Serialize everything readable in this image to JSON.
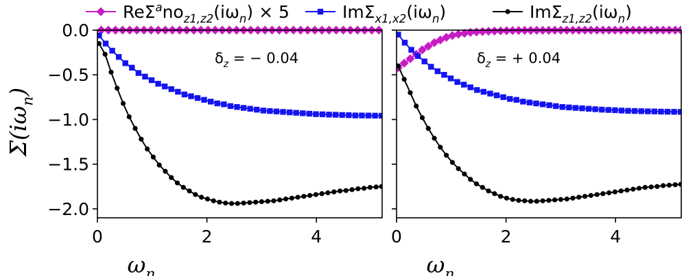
{
  "chart_data": {
    "type": "line",
    "ylabel": "Σ(iω_n)",
    "legend": {
      "placement": "top",
      "entries": [
        {
          "key": "re_ano",
          "label": "ReΣ^ano_{z1,z2}(iω_n) × 5",
          "color": "#c71bc4",
          "marker": "diamond"
        },
        {
          "key": "im_x",
          "label": "ImΣ_{x1,x2}(iω_n)",
          "color": "#1414f0",
          "marker": "square"
        },
        {
          "key": "im_z",
          "label": "ImΣ_{z1,z2}(iω_n)",
          "color": "#000000",
          "marker": "circle"
        }
      ]
    },
    "panels": [
      {
        "name": "left",
        "annotation": "δ_z = − 0.04",
        "xlabel": "ω_n",
        "xlim": [
          0,
          5.2
        ],
        "ylim": [
          -2.1,
          0.0
        ],
        "xticks": [
          0,
          2,
          4
        ],
        "yticks": [
          0.0,
          -0.5,
          -1.0,
          -1.5,
          -2.0
        ],
        "series": [
          {
            "key": "re_ano",
            "x": [
              0.07,
              0.2,
              0.33,
              0.46,
              0.59,
              0.72,
              0.85,
              0.98,
              1.11,
              1.24,
              1.37,
              1.5,
              1.63,
              1.76,
              1.89,
              2.02,
              2.15,
              2.28,
              2.41,
              2.54,
              2.67,
              2.8,
              2.93,
              3.06,
              3.19,
              3.32,
              3.45,
              3.58,
              3.71,
              3.84,
              3.97,
              4.1,
              4.23,
              4.36,
              4.49,
              4.62,
              4.75,
              4.88,
              5.01,
              5.14
            ],
            "y": [
              0,
              0,
              0,
              0,
              0,
              0,
              0,
              0,
              0,
              0,
              0,
              0,
              0,
              0,
              0,
              0,
              0,
              0,
              0,
              0,
              0,
              0,
              0,
              0,
              0,
              0,
              0,
              0,
              0,
              0,
              0,
              0,
              0,
              0,
              0,
              0,
              0,
              0,
              0,
              0
            ]
          },
          {
            "key": "im_x",
            "x": [
              0.03,
              0.15,
              0.27,
              0.39,
              0.51,
              0.63,
              0.75,
              0.87,
              0.99,
              1.11,
              1.23,
              1.35,
              1.47,
              1.59,
              1.71,
              1.83,
              1.95,
              2.07,
              2.19,
              2.31,
              2.43,
              2.55,
              2.67,
              2.79,
              2.91,
              3.03,
              3.15,
              3.27,
              3.39,
              3.51,
              3.63,
              3.75,
              3.87,
              3.99,
              4.11,
              4.23,
              4.35,
              4.47,
              4.59,
              4.71,
              4.83,
              4.95,
              5.07,
              5.19
            ],
            "y": [
              -0.06,
              -0.15,
              -0.23,
              -0.3,
              -0.37,
              -0.42,
              -0.48,
              -0.52,
              -0.56,
              -0.6,
              -0.63,
              -0.66,
              -0.69,
              -0.72,
              -0.74,
              -0.76,
              -0.78,
              -0.8,
              -0.82,
              -0.83,
              -0.85,
              -0.86,
              -0.87,
              -0.88,
              -0.89,
              -0.9,
              -0.905,
              -0.91,
              -0.915,
              -0.92,
              -0.925,
              -0.93,
              -0.935,
              -0.94,
              -0.942,
              -0.945,
              -0.947,
              -0.95,
              -0.952,
              -0.955,
              -0.955,
              -0.956,
              -0.957,
              -0.958
            ]
          },
          {
            "key": "im_z",
            "x": [
              0.03,
              0.14,
              0.25,
              0.36,
              0.47,
              0.58,
              0.69,
              0.8,
              0.91,
              1.02,
              1.13,
              1.24,
              1.35,
              1.46,
              1.57,
              1.68,
              1.79,
              1.9,
              2.01,
              2.12,
              2.23,
              2.34,
              2.45,
              2.56,
              2.67,
              2.78,
              2.89,
              3.0,
              3.11,
              3.22,
              3.33,
              3.44,
              3.55,
              3.66,
              3.77,
              3.88,
              3.99,
              4.1,
              4.21,
              4.32,
              4.43,
              4.54,
              4.65,
              4.76,
              4.87,
              4.98,
              5.09,
              5.19
            ],
            "y": [
              -0.15,
              -0.27,
              -0.47,
              -0.65,
              -0.82,
              -0.97,
              -1.1,
              -1.22,
              -1.33,
              -1.42,
              -1.51,
              -1.58,
              -1.65,
              -1.71,
              -1.76,
              -1.8,
              -1.84,
              -1.87,
              -1.89,
              -1.91,
              -1.925,
              -1.935,
              -1.94,
              -1.94,
              -1.935,
              -1.93,
              -1.925,
              -1.92,
              -1.915,
              -1.91,
              -1.9,
              -1.89,
              -1.88,
              -1.87,
              -1.86,
              -1.85,
              -1.84,
              -1.83,
              -1.82,
              -1.81,
              -1.8,
              -1.795,
              -1.785,
              -1.775,
              -1.77,
              -1.76,
              -1.755,
              -1.75
            ]
          }
        ]
      },
      {
        "name": "right",
        "annotation": "δ_z = + 0.04",
        "xlabel": "ω_n",
        "xlim": [
          0,
          5.2
        ],
        "ylim": [
          -2.1,
          0.0
        ],
        "xticks": [
          0,
          2,
          4
        ],
        "yticks": [],
        "series": [
          {
            "key": "re_ano",
            "x": [
              0.03,
              0.14,
              0.25,
              0.36,
              0.47,
              0.58,
              0.69,
              0.8,
              0.91,
              1.02,
              1.13,
              1.24,
              1.35,
              1.46,
              1.57,
              1.68,
              1.79,
              1.9,
              2.01,
              2.12,
              2.23,
              2.34,
              2.45,
              2.56,
              2.67,
              2.78,
              2.89,
              3.0,
              3.11,
              3.22,
              3.33,
              3.44,
              3.55,
              3.66,
              3.77,
              3.88,
              3.99,
              4.1,
              4.21,
              4.32,
              4.43,
              4.54,
              4.65,
              4.76,
              4.87,
              4.98,
              5.09,
              5.19
            ],
            "y": [
              -0.42,
              -0.37,
              -0.32,
              -0.27,
              -0.22,
              -0.18,
              -0.14,
              -0.11,
              -0.08,
              -0.06,
              -0.045,
              -0.035,
              -0.025,
              -0.02,
              -0.015,
              -0.012,
              -0.01,
              -0.008,
              -0.006,
              -0.005,
              -0.004,
              -0.003,
              -0.003,
              -0.002,
              -0.002,
              -0.002,
              -0.001,
              -0.001,
              -0.001,
              -0.001,
              -0.001,
              0,
              0,
              0,
              0,
              0,
              0,
              0,
              0,
              0,
              0,
              0,
              0,
              0,
              0,
              0,
              0,
              0
            ]
          },
          {
            "key": "im_x",
            "x": [
              0.03,
              0.15,
              0.27,
              0.39,
              0.51,
              0.63,
              0.75,
              0.87,
              0.99,
              1.11,
              1.23,
              1.35,
              1.47,
              1.59,
              1.71,
              1.83,
              1.95,
              2.07,
              2.19,
              2.31,
              2.43,
              2.55,
              2.67,
              2.79,
              2.91,
              3.03,
              3.15,
              3.27,
              3.39,
              3.51,
              3.63,
              3.75,
              3.87,
              3.99,
              4.11,
              4.23,
              4.35,
              4.47,
              4.59,
              4.71,
              4.83,
              4.95,
              5.07,
              5.19
            ],
            "y": [
              -0.05,
              -0.14,
              -0.22,
              -0.29,
              -0.35,
              -0.41,
              -0.46,
              -0.5,
              -0.54,
              -0.58,
              -0.61,
              -0.64,
              -0.67,
              -0.69,
              -0.71,
              -0.73,
              -0.75,
              -0.77,
              -0.78,
              -0.8,
              -0.81,
              -0.82,
              -0.83,
              -0.84,
              -0.85,
              -0.86,
              -0.865,
              -0.87,
              -0.875,
              -0.88,
              -0.885,
              -0.89,
              -0.893,
              -0.896,
              -0.9,
              -0.903,
              -0.905,
              -0.907,
              -0.909,
              -0.91,
              -0.912,
              -0.913,
              -0.914,
              -0.915
            ]
          },
          {
            "key": "im_z",
            "x": [
              0.03,
              0.14,
              0.25,
              0.36,
              0.47,
              0.58,
              0.69,
              0.8,
              0.91,
              1.02,
              1.13,
              1.24,
              1.35,
              1.46,
              1.57,
              1.68,
              1.79,
              1.9,
              2.01,
              2.12,
              2.23,
              2.34,
              2.45,
              2.56,
              2.67,
              2.78,
              2.89,
              3.0,
              3.11,
              3.22,
              3.33,
              3.44,
              3.55,
              3.66,
              3.77,
              3.88,
              3.99,
              4.1,
              4.21,
              4.32,
              4.43,
              4.54,
              4.65,
              4.76,
              4.87,
              4.98,
              5.09,
              5.19
            ],
            "y": [
              -0.4,
              -0.55,
              -0.7,
              -0.85,
              -0.98,
              -1.1,
              -1.21,
              -1.31,
              -1.4,
              -1.48,
              -1.55,
              -1.61,
              -1.67,
              -1.72,
              -1.76,
              -1.8,
              -1.83,
              -1.86,
              -1.88,
              -1.895,
              -1.905,
              -1.91,
              -1.915,
              -1.915,
              -1.91,
              -1.905,
              -1.9,
              -1.895,
              -1.89,
              -1.88,
              -1.87,
              -1.86,
              -1.85,
              -1.84,
              -1.83,
              -1.82,
              -1.81,
              -1.8,
              -1.79,
              -1.78,
              -1.77,
              -1.76,
              -1.755,
              -1.75,
              -1.74,
              -1.735,
              -1.73,
              -1.725
            ]
          }
        ]
      }
    ]
  }
}
